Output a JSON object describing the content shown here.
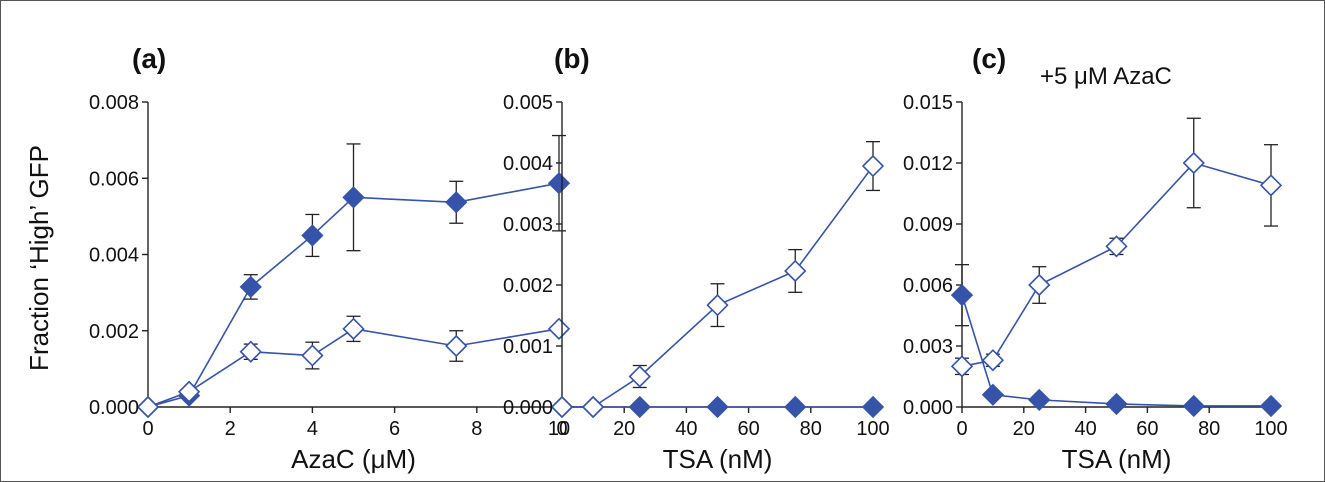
{
  "figure": {
    "ylabel": "Fraction ‘High’ GFP",
    "colors": {
      "series": "#3553a8",
      "marker_fill": "#3553a8",
      "error_bar": "#222222",
      "axis": "#222222",
      "frame": "#555555"
    }
  },
  "chart_data": [
    {
      "type": "scatter",
      "panel_label": "(a)",
      "annotation": "",
      "xlabel": "AzaC (μM)",
      "ylabel": "Fraction ‘High’ GFP",
      "xlim": [
        0,
        10
      ],
      "ylim": [
        0,
        0.008
      ],
      "xticks": [
        "0",
        "2",
        "4",
        "6",
        "8",
        "10"
      ],
      "yticks": [
        "0.000",
        "0.002",
        "0.004",
        "0.006",
        "0.008"
      ],
      "grid": false,
      "legend": "none",
      "series": [
        {
          "marker": "filled-diamond",
          "x": [
            0,
            1,
            2.5,
            4,
            5,
            7.5,
            10
          ],
          "y": [
            0,
            0.0003,
            0.00315,
            0.0045,
            0.0055,
            0.00537,
            0.00587
          ],
          "err": [
            0,
            0,
            0.00032,
            0.00055,
            0.0014,
            0.00055,
            0.00125
          ]
        },
        {
          "marker": "open-diamond",
          "x": [
            0,
            1,
            2.5,
            4,
            5,
            7.5,
            10
          ],
          "y": [
            0,
            0.0004,
            0.00145,
            0.00135,
            0.00205,
            0.0016,
            0.00205
          ],
          "err": [
            0,
            0,
            0.0002,
            0.00035,
            0.00033,
            0.0004,
            0
          ]
        }
      ]
    },
    {
      "type": "scatter",
      "panel_label": "(b)",
      "annotation": "",
      "xlabel": "TSA (nM)",
      "ylabel": "",
      "xlim": [
        0,
        100
      ],
      "ylim": [
        0,
        0.005
      ],
      "xticks": [
        "0",
        "20",
        "40",
        "60",
        "80",
        "100"
      ],
      "yticks": [
        "0.000",
        "0.001",
        "0.002",
        "0.003",
        "0.004",
        "0.005"
      ],
      "grid": false,
      "legend": "none",
      "series": [
        {
          "marker": "filled-diamond",
          "x": [
            0,
            10,
            25,
            50,
            75,
            100
          ],
          "y": [
            0,
            0,
            0,
            0,
            0,
            0
          ],
          "err": [
            0,
            0,
            0,
            0,
            0,
            0
          ]
        },
        {
          "marker": "open-diamond",
          "x": [
            0,
            10,
            25,
            50,
            75,
            100
          ],
          "y": [
            0,
            0,
            0.0005,
            0.00167,
            0.00223,
            0.00395
          ],
          "err": [
            0,
            0,
            0.00018,
            0.00035,
            0.00035,
            0.0004
          ]
        }
      ]
    },
    {
      "type": "scatter",
      "panel_label": "(c)",
      "annotation": "+5 μM AzaC",
      "xlabel": "TSA (nM)",
      "ylabel": "",
      "xlim": [
        0,
        100
      ],
      "ylim": [
        0,
        0.015
      ],
      "xticks": [
        "0",
        "20",
        "40",
        "60",
        "80",
        "100"
      ],
      "yticks": [
        "0.000",
        "0.003",
        "0.006",
        "0.009",
        "0.012",
        "0.015"
      ],
      "grid": false,
      "legend": "none",
      "series": [
        {
          "marker": "filled-diamond",
          "x": [
            0,
            10,
            25,
            50,
            75,
            100
          ],
          "y": [
            0.0055,
            0.0006,
            0.00035,
            0.00015,
            5e-05,
            5e-05
          ],
          "err": [
            0.0015,
            0,
            0,
            0,
            0,
            0
          ]
        },
        {
          "marker": "open-diamond",
          "x": [
            0,
            10,
            25,
            50,
            75,
            100
          ],
          "y": [
            0.002,
            0.0023,
            0.006,
            0.0079,
            0.012,
            0.0109
          ],
          "err": [
            0.0004,
            0.0003,
            0.0009,
            0.0004,
            0.0022,
            0.002
          ]
        }
      ]
    }
  ]
}
